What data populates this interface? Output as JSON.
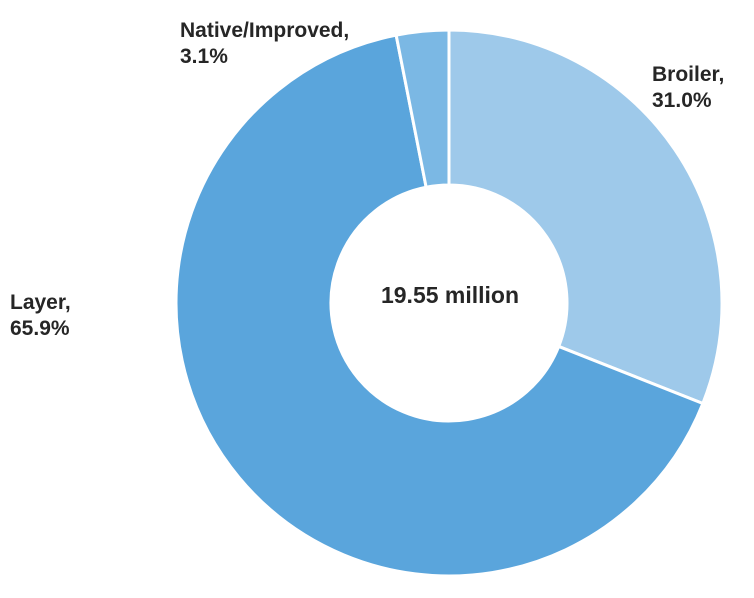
{
  "chart_data": {
    "type": "pie",
    "variant": "donut",
    "center_text": "19.55 million",
    "slices": [
      {
        "name": "Broiler",
        "value": 31.0,
        "label_line1": "Broiler,",
        "label_line2": "31.0%",
        "color": "#9ec9ea"
      },
      {
        "name": "Layer",
        "value": 65.9,
        "label_line1": "Layer,",
        "label_line2": "65.9%",
        "color": "#5aa5dc"
      },
      {
        "name": "Native/Improved",
        "value": 3.1,
        "label_line1": "Native/Improved,",
        "label_line2": "3.1%",
        "color": "#7bb8e4"
      }
    ],
    "start_angle": "12 o'clock",
    "direction": "clockwise",
    "legend": "none"
  }
}
